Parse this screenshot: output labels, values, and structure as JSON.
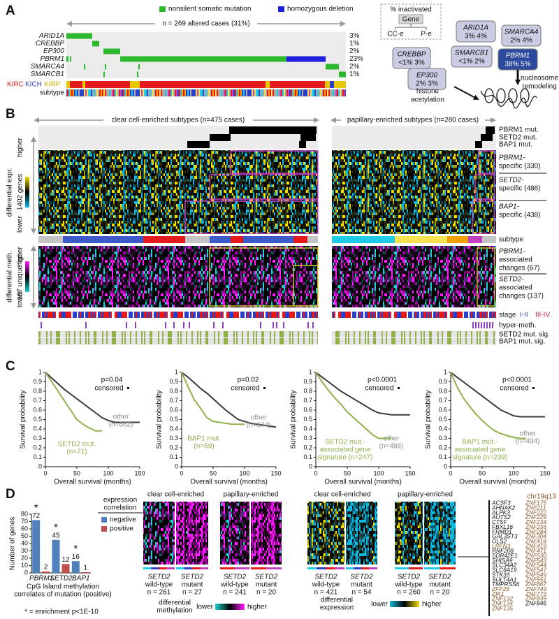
{
  "panel_a": {
    "label": "A",
    "legend": [
      "nonsilent somatic mutation",
      "homozygous deletion"
    ],
    "cases": "n = 269 altered cases (31%)",
    "genes": [
      {
        "name": "ARID1A",
        "percent": "3%"
      },
      {
        "name": "CREBBP",
        "percent": "1%"
      },
      {
        "name": "EP300",
        "percent": "2%"
      },
      {
        "name": "PBRM1",
        "percent": "23%"
      },
      {
        "name": "SMARCA4",
        "percent": "2%"
      },
      {
        "name": "SMARCB1",
        "percent": "1%"
      }
    ],
    "cancer_types": [
      "KIRC",
      "KICH",
      "KIRP"
    ],
    "subtype": "subtype",
    "key": {
      "title": "% inactivated",
      "gene": "Gene",
      "left": "CC-e",
      "right": "P-e"
    },
    "boxes": [
      {
        "gene": "ARID1A",
        "values": "3% 4%"
      },
      {
        "gene": "SMARCA4",
        "values": "2% 4%"
      },
      {
        "gene": "SMARCB1",
        "values": "<1% 2%"
      },
      {
        "gene": "PBRM1",
        "values": "38% 5%"
      },
      {
        "gene": "CREBBP",
        "values": "<1% 3%"
      },
      {
        "gene": "EP300",
        "values": "2% 3%"
      }
    ],
    "processes": [
      [
        "histone",
        "acetylation"
      ],
      [
        "nucleosome",
        "remodeling"
      ]
    ]
  },
  "panel_b": {
    "label": "B",
    "left_title": "clear cell-enriched subtypes (n=475 cases)",
    "right_title": "papillary-enriched subtypes (n=280 cases)",
    "mut_rows": [
      "PBRM1 mut.",
      "SETD2 mut.",
      "BAP1 mut."
    ],
    "expr_axis": [
      "differential expr.",
      "1402 genes"
    ],
    "meth_axis": [
      "differential meth.",
      "187 unique loci"
    ],
    "higher": "higher",
    "lower": "lower",
    "expr_groups": [
      [
        "PBRM1-",
        "specific (330)"
      ],
      [
        "SETD2-",
        "specific (486)"
      ],
      [
        "BAP1-",
        "specific (438)"
      ]
    ],
    "subtype": "subtype",
    "meth_groups": [
      [
        "PBRM1-",
        "associated",
        "changes (67)"
      ],
      [
        "SETD2-",
        "associated",
        "changes (137)"
      ]
    ],
    "stage": "stage",
    "stage_levels": [
      "I-II",
      "III-IV"
    ],
    "hyper": "hyper-meth.",
    "sig_rows": [
      "SETD2 mut. sig.",
      "BAP1 mut. sig."
    ]
  },
  "panel_c": {
    "label": "C"
  },
  "chart_data": [
    {
      "type": "line",
      "ylabel": "Survival probability",
      "xlabel": "Overall survival (months)",
      "x": [
        0,
        10,
        20,
        30,
        40,
        50,
        60,
        70,
        80,
        90,
        100,
        110,
        120,
        130,
        140,
        150
      ],
      "xlim": [
        0,
        150
      ],
      "xticks": [
        0,
        50,
        100,
        150
      ],
      "ylim": [
        0,
        1
      ],
      "yticks": [
        0,
        0.1,
        0.2,
        0.3,
        0.4,
        0.5,
        0.6,
        0.7,
        0.8,
        0.9,
        1
      ],
      "p_value": "p=0.04",
      "censored": "censored",
      "series": [
        {
          "label": [
            "other",
            "(n=662)"
          ],
          "color": "#3a3a3a",
          "label_color": "#8a8a8a",
          "values": [
            1,
            0.94,
            0.88,
            0.82,
            0.77,
            0.72,
            0.67,
            0.62,
            0.57,
            0.52,
            0.49,
            0.47,
            0.47,
            0.47,
            0.47,
            0.47
          ]
        },
        {
          "label": [
            "SETD2 mut.",
            "(n=71)"
          ],
          "color": "#8fb04a",
          "label_color": "#8fb04a",
          "values": [
            1,
            0.9,
            0.8,
            0.7,
            0.6,
            0.5,
            0.45,
            0.41,
            0.38,
            0.38,
            null,
            null,
            null,
            null,
            null,
            null
          ]
        }
      ]
    },
    {
      "type": "line",
      "ylabel": "Survival probability",
      "xlabel": "Overall survival (months)",
      "x": [
        0,
        10,
        20,
        30,
        40,
        50,
        60,
        70,
        80,
        90,
        100,
        110,
        120,
        130,
        140,
        150
      ],
      "xlim": [
        0,
        150
      ],
      "xticks": [
        0,
        50,
        100,
        150
      ],
      "ylim": [
        0,
        1
      ],
      "yticks": [
        0,
        0.1,
        0.2,
        0.3,
        0.4,
        0.5,
        0.6,
        0.7,
        0.8,
        0.9,
        1
      ],
      "p_value": "p=0.02",
      "censored": "censored",
      "series": [
        {
          "label": [
            "other",
            "(n=674)"
          ],
          "color": "#3a3a3a",
          "label_color": "#8a8a8a",
          "values": [
            1,
            0.95,
            0.89,
            0.83,
            0.78,
            0.72,
            0.66,
            0.6,
            0.55,
            0.5,
            0.48,
            0.46,
            0.45,
            0.44,
            0.43,
            0.42
          ]
        },
        {
          "label": [
            "BAP1 mut.",
            "(n=59)"
          ],
          "color": "#8fb04a",
          "label_color": "#8fb04a",
          "values": [
            1,
            0.85,
            0.71,
            0.62,
            0.52,
            0.48,
            0.47,
            0.46,
            0.45,
            0.45,
            0.45,
            null,
            null,
            null,
            null,
            null
          ]
        }
      ]
    },
    {
      "type": "line",
      "ylabel": "Survival probability",
      "xlabel": "Overall survival (months)",
      "x": [
        0,
        10,
        20,
        30,
        40,
        50,
        60,
        70,
        80,
        90,
        100,
        110,
        120,
        130,
        140,
        150
      ],
      "xlim": [
        0,
        150
      ],
      "xticks": [
        0,
        50,
        100,
        150
      ],
      "ylim": [
        0,
        1
      ],
      "yticks": [
        0,
        0.1,
        0.2,
        0.3,
        0.4,
        0.5,
        0.6,
        0.7,
        0.8,
        0.9,
        1
      ],
      "p_value": "p<0.0001",
      "censored": "censored",
      "series": [
        {
          "label": [
            "other",
            "(n=486)"
          ],
          "color": "#3a3a3a",
          "label_color": "#8a8a8a",
          "values": [
            1,
            0.95,
            0.9,
            0.85,
            0.8,
            0.76,
            0.72,
            0.68,
            0.64,
            0.6,
            0.57,
            0.56,
            0.55,
            0.55,
            0.55,
            0.55
          ]
        },
        {
          "label": [
            "SETD2 mut.-",
            "associated gene",
            "signature (n=247)"
          ],
          "color": "#8fb04a",
          "label_color": "#8fb04a",
          "values": [
            1,
            0.9,
            0.81,
            0.73,
            0.66,
            0.58,
            0.52,
            0.46,
            0.4,
            0.34,
            0.3,
            0.3,
            0.3,
            null,
            null,
            null
          ]
        }
      ]
    },
    {
      "type": "line",
      "ylabel": "Survival probability",
      "xlabel": "Overall survival (months)",
      "x": [
        0,
        10,
        20,
        30,
        40,
        50,
        60,
        70,
        80,
        90,
        100,
        110,
        120,
        130,
        140,
        150
      ],
      "xlim": [
        0,
        150
      ],
      "xticks": [
        0,
        50,
        100,
        150
      ],
      "ylim": [
        0,
        1
      ],
      "yticks": [
        0,
        0.1,
        0.2,
        0.3,
        0.4,
        0.5,
        0.6,
        0.7,
        0.8,
        0.9,
        1
      ],
      "p_value": "p<0.0001",
      "censored": "censored",
      "series": [
        {
          "label": [
            "other",
            "(n=494)"
          ],
          "color": "#3a3a3a",
          "label_color": "#8a8a8a",
          "values": [
            1,
            0.95,
            0.9,
            0.85,
            0.8,
            0.75,
            0.7,
            0.65,
            0.6,
            0.57,
            0.54,
            0.53,
            0.53,
            0.53,
            0.53,
            0.53
          ]
        },
        {
          "label": [
            "BAP1 mut.-",
            "associated gene",
            "signature (n=239)"
          ],
          "color": "#8fb04a",
          "label_color": "#8fb04a",
          "values": [
            1,
            0.85,
            0.73,
            0.64,
            0.56,
            0.49,
            0.43,
            0.38,
            0.35,
            0.33,
            0.31,
            0.3,
            0.3,
            null,
            null,
            null
          ]
        }
      ]
    },
    {
      "type": "bar",
      "ylabel": "Number of genes",
      "xlabel": [
        "CpG Island methylation",
        "correlates of mutation (positive)"
      ],
      "categories": [
        "PBRM1",
        "SETD2",
        "BAP1"
      ],
      "series": [
        {
          "name": "negative",
          "color": "#4f81bd",
          "values": [
            72,
            45,
            16
          ]
        },
        {
          "name": "positive",
          "color": "#c0504d",
          "values": [
            2,
            12,
            1
          ]
        }
      ],
      "ylim": [
        0,
        80
      ],
      "yticks": [
        0,
        10,
        20,
        30,
        40,
        50,
        60,
        70,
        80
      ],
      "legend_title": [
        "expression",
        "correlation"
      ],
      "stars": [
        "*",
        "*",
        "*"
      ],
      "footnote": "* = enrichment p<1E-10"
    }
  ],
  "panel_d": {
    "label": "D",
    "heatmaps": [
      {
        "title": "clear cell-enriched",
        "panels": [
          {
            "gene": "SETD2",
            "status": "wild-type",
            "n": "n = 261"
          },
          {
            "gene": "SETD2",
            "status": "mutant",
            "n": "n = 27"
          }
        ]
      },
      {
        "title": "papillary-enriched",
        "panels": [
          {
            "gene": "SETD2",
            "status": "wild-type",
            "n": "n = 241"
          },
          {
            "gene": "SETD2",
            "status": "mutant",
            "n": "n = 20"
          }
        ]
      },
      {
        "title": "clear cell-enriched",
        "panels": [
          {
            "gene": "SETD2",
            "status": "wild-type",
            "n": "n = 421"
          },
          {
            "gene": "SETD2",
            "status": "mutant",
            "n": "n = 54"
          }
        ]
      },
      {
        "title": "papillary-enriched",
        "panels": [
          {
            "gene": "SETD2",
            "status": "wild-type",
            "n": "n = 260"
          },
          {
            "gene": "SETD2",
            "status": "mutant",
            "n": "n = 20"
          }
        ]
      }
    ],
    "meth_scale": {
      "title": [
        "differential",
        "methylation"
      ],
      "lower": "lower",
      "higher": "higher"
    },
    "expr_scale": {
      "title": [
        "differential",
        "expression"
      ],
      "lower": "lower",
      "higher": "higher"
    },
    "region": "chr19q13",
    "genes_left": [
      {
        "name": "ACSF3",
        "chr19q13": false
      },
      {
        "name": "AHNAK2",
        "chr19q13": false
      },
      {
        "name": "ALPK3",
        "chr19q13": false
      },
      {
        "name": "AUTS2",
        "chr19q13": false
      },
      {
        "name": "CTSF",
        "chr19q13": false
      },
      {
        "name": "FBXL16",
        "chr19q13": false
      },
      {
        "name": "FRMD1",
        "chr19q13": false
      },
      {
        "name": "GAL3ST3",
        "chr19q13": false
      },
      {
        "name": "GLS2",
        "chr19q13": false
      },
      {
        "name": "LRFN3",
        "chr19q13": true
      },
      {
        "name": "RNF208",
        "chr19q13": false
      },
      {
        "name": "SDR42E1",
        "chr19q13": false
      },
      {
        "name": "SHISA9",
        "chr19q13": false
      },
      {
        "name": "SLC34A2",
        "chr19q13": false
      },
      {
        "name": "SLC6A19",
        "chr19q13": false
      },
      {
        "name": "STK33",
        "chr19q13": false
      },
      {
        "name": "SULT4A1",
        "chr19q13": false
      },
      {
        "name": "TMPRSS6",
        "chr19q13": false
      },
      {
        "name": "ZFP28",
        "chr19q13": true
      },
      {
        "name": "ZIK1",
        "chr19q13": true
      },
      {
        "name": "ZNF132",
        "chr19q13": true
      },
      {
        "name": "ZNF134",
        "chr19q13": true
      },
      {
        "name": "ZNF135",
        "chr19q13": true
      }
    ],
    "genes_right": [
      {
        "name": "ZNF175",
        "chr19q13": true
      },
      {
        "name": "ZNF211",
        "chr19q13": true
      },
      {
        "name": "ZNF222",
        "chr19q13": true
      },
      {
        "name": "ZNF229",
        "chr19q13": true
      },
      {
        "name": "ZNF234",
        "chr19q13": true
      },
      {
        "name": "ZNF256",
        "chr19q13": true
      },
      {
        "name": "ZNF284",
        "chr19q13": true
      },
      {
        "name": "ZNF304",
        "chr19q13": true
      },
      {
        "name": "ZNF418",
        "chr19q13": true
      },
      {
        "name": "ZNF419",
        "chr19q13": true
      },
      {
        "name": "ZNF471",
        "chr19q13": true
      },
      {
        "name": "ZNF530",
        "chr19q13": true
      },
      {
        "name": "ZNF543",
        "chr19q13": true
      },
      {
        "name": "ZNF544",
        "chr19q13": true
      },
      {
        "name": "ZNF547",
        "chr19q13": true
      },
      {
        "name": "ZNF549",
        "chr19q13": true
      },
      {
        "name": "ZNF551",
        "chr19q13": true
      },
      {
        "name": "ZNF667",
        "chr19q13": true
      },
      {
        "name": "ZNF749",
        "chr19q13": true
      },
      {
        "name": "ZNF773",
        "chr19q13": true
      },
      {
        "name": "ZNF835",
        "chr19q13": true
      },
      {
        "name": "ZNF846",
        "chr19q13": false
      }
    ]
  }
}
